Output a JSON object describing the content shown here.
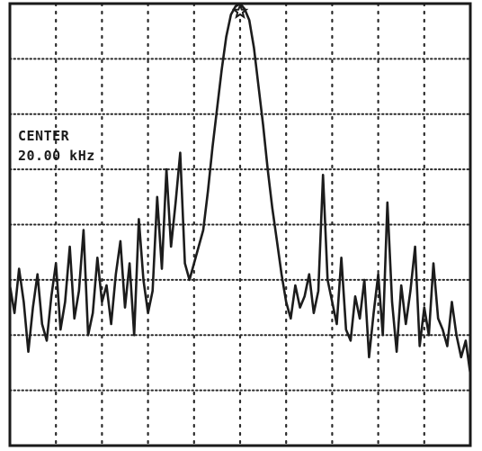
{
  "screen": {
    "center_label": "CENTER",
    "center_value": "20.00 kHz"
  },
  "colors": {
    "trace": "#1c1c1c",
    "graticule": "#2a2a2a",
    "paper": "#ffffff"
  },
  "chart_data": {
    "type": "line",
    "title": "",
    "xlabel": "",
    "ylabel": "",
    "grid": true,
    "grid_divisions": {
      "x": 10,
      "y": 8
    },
    "xlim": [
      -5,
      5
    ],
    "ylim": [
      0,
      8
    ],
    "marker": {
      "name": "peak-marker",
      "x": 0,
      "y": 8
    },
    "series": [
      {
        "x": [
          -5.0,
          -4.9,
          -4.8,
          -4.7,
          -4.6,
          -4.5,
          -4.4,
          -4.3,
          -4.2,
          -4.1,
          -4.0,
          -3.9,
          -3.8,
          -3.7,
          -3.6,
          -3.5,
          -3.4,
          -3.3,
          -3.2,
          -3.1,
          -3.0,
          -2.9,
          -2.8,
          -2.7,
          -2.6,
          -2.5,
          -2.4,
          -2.3,
          -2.2,
          -2.1,
          -2.0,
          -1.9,
          -1.8,
          -1.7,
          -1.6,
          -1.5,
          -1.4,
          -1.3,
          -1.2,
          -1.1,
          -1.0,
          -0.9,
          -0.8,
          -0.7,
          -0.6,
          -0.5,
          -0.4,
          -0.3,
          -0.2,
          -0.1,
          0.0,
          0.1,
          0.2,
          0.3,
          0.4,
          0.5,
          0.6,
          0.7,
          0.8,
          0.9,
          1.0,
          1.1,
          1.2,
          1.3,
          1.4,
          1.5,
          1.6,
          1.7,
          1.8,
          1.9,
          2.0,
          2.1,
          2.2,
          2.3,
          2.4,
          2.5,
          2.6,
          2.7,
          2.8,
          2.9,
          3.0,
          3.1,
          3.2,
          3.3,
          3.4,
          3.5,
          3.6,
          3.7,
          3.8,
          3.9,
          4.0,
          4.1,
          4.2,
          4.3,
          4.4,
          4.5,
          4.6,
          4.7,
          4.8,
          4.9,
          5.0
        ],
        "y": [
          2.9,
          2.4,
          3.2,
          2.6,
          1.7,
          2.5,
          3.1,
          2.2,
          1.9,
          2.7,
          3.3,
          2.1,
          2.6,
          3.6,
          2.3,
          2.8,
          3.9,
          2.0,
          2.4,
          3.4,
          2.6,
          2.9,
          2.2,
          3.1,
          3.7,
          2.5,
          3.3,
          2.0,
          4.1,
          3.0,
          2.4,
          2.8,
          4.5,
          3.2,
          5.0,
          3.6,
          4.4,
          5.3,
          3.3,
          3.0,
          3.3,
          3.6,
          3.9,
          4.6,
          5.4,
          6.1,
          6.8,
          7.4,
          7.8,
          7.95,
          8.0,
          7.9,
          7.7,
          7.2,
          6.5,
          5.8,
          5.0,
          4.3,
          3.7,
          3.1,
          2.6,
          2.3,
          2.9,
          2.5,
          2.7,
          3.1,
          2.4,
          2.8,
          4.9,
          3.0,
          2.6,
          2.2,
          3.4,
          2.1,
          1.9,
          2.7,
          2.3,
          3.0,
          1.6,
          2.4,
          3.1,
          2.0,
          4.4,
          2.6,
          1.7,
          2.9,
          2.2,
          2.8,
          3.6,
          1.8,
          2.5,
          2.0,
          3.3,
          2.3,
          2.1,
          1.8,
          2.6,
          2.0,
          1.6,
          1.9,
          1.3
        ]
      }
    ]
  }
}
